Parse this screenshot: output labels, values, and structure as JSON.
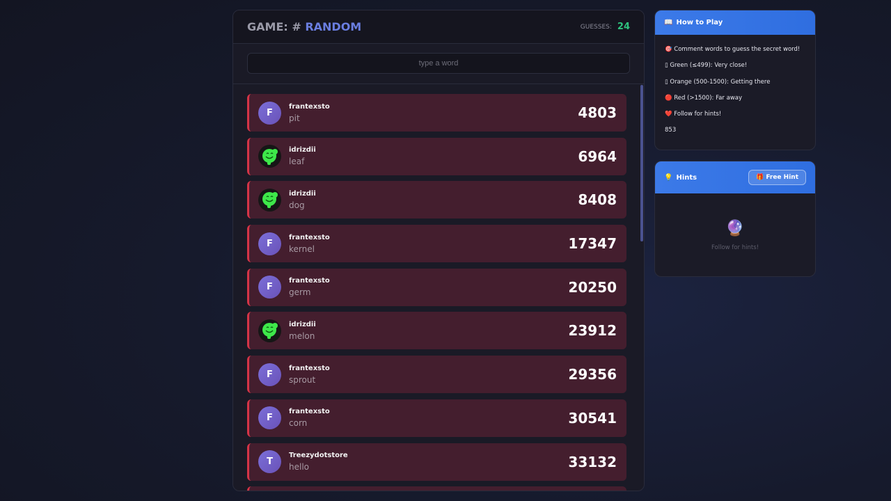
{
  "game": {
    "title_prefix": "GAME: #",
    "title_accent": "RANDOM",
    "guesses_label": "GUESSES:",
    "guesses_count": "24",
    "input_placeholder": "type a word"
  },
  "guesses": [
    {
      "user": "frantexsto",
      "initial": "F",
      "avatar": "letter",
      "word": "pit",
      "score": "4803"
    },
    {
      "user": "idrizdii",
      "initial": "",
      "avatar": "green-face",
      "word": "leaf",
      "score": "6964"
    },
    {
      "user": "idrizdii",
      "initial": "",
      "avatar": "green-face",
      "word": "dog",
      "score": "8408"
    },
    {
      "user": "frantexsto",
      "initial": "F",
      "avatar": "letter",
      "word": "kernel",
      "score": "17347"
    },
    {
      "user": "frantexsto",
      "initial": "F",
      "avatar": "letter",
      "word": "germ",
      "score": "20250"
    },
    {
      "user": "idrizdii",
      "initial": "",
      "avatar": "green-face",
      "word": "melon",
      "score": "23912"
    },
    {
      "user": "frantexsto",
      "initial": "F",
      "avatar": "letter",
      "word": "sprout",
      "score": "29356"
    },
    {
      "user": "frantexsto",
      "initial": "F",
      "avatar": "letter",
      "word": "corn",
      "score": "30541"
    },
    {
      "user": "Treezydotstore",
      "initial": "T",
      "avatar": "letter",
      "word": "hello",
      "score": "33132"
    },
    {
      "user": "",
      "initial": "",
      "avatar": "letter",
      "word": "",
      "score": ""
    }
  ],
  "how_to_play": {
    "icon": "📖",
    "title": "How to Play",
    "rules": [
      "🎯 Comment words to guess the secret word!",
      "▯ Green (≤499): Very close!",
      "▯ Orange (500-1500): Getting there",
      "🔴 Red (>1500): Far away",
      "❤️ Follow for hints!",
      "853"
    ]
  },
  "hints": {
    "icon": "💡",
    "title": "Hints",
    "button_icon": "🎁",
    "button_label": "Free Hint",
    "empty_icon": "🔮",
    "empty_text": "Follow for hints!"
  },
  "colors": {
    "accent": "#6a7ee0",
    "guesses": "#2ec27e",
    "far_row": "#441e2e",
    "far_border": "#d63447",
    "header_blue": "#3c7ae8"
  }
}
